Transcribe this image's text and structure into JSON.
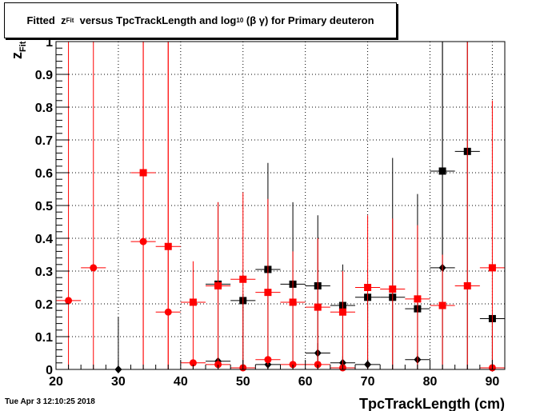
{
  "title": {
    "prefix": "Fitted",
    "z": "z",
    "z_sub": "Fit",
    "middle": "versus TpcTrackLength and log",
    "log_sub": "10",
    "suffix": "(β γ) for Primary deuteron"
  },
  "timestamp": "Tue Apr  3 12:10:25 2018",
  "colors": {
    "black": "#000000",
    "red": "#ff0000"
  },
  "chart_data": {
    "type": "scatter",
    "title": "Fitted z_Fit versus TpcTrackLength and log_10 (β γ) for Primary deuteron",
    "xlabel": "TpcTrackLength (cm)",
    "ylabel": "z_Fit",
    "ylabel_main": "z",
    "ylabel_sub": "Fit",
    "xlim": [
      20,
      92
    ],
    "ylim": [
      0,
      1
    ],
    "x_ticks": [
      20,
      30,
      40,
      50,
      60,
      70,
      80,
      90
    ],
    "y_ticks": [
      0,
      0.1,
      0.2,
      0.3,
      0.4,
      0.5,
      0.6,
      0.7,
      0.8,
      0.9,
      1
    ],
    "y_tick_labels": [
      "0",
      "0.1",
      "0.2",
      "0.3",
      "0.4",
      "0.5",
      "0.6",
      "0.7",
      "0.8",
      "0.9",
      "1"
    ],
    "grid": true,
    "series": [
      {
        "color": "#000000",
        "marker": "diamond",
        "points": [
          {
            "x": 30,
            "y": 0.0,
            "ylo": 0.0,
            "yhi": 0.16
          },
          {
            "x": 46,
            "y": 0.025,
            "ylo": 0.0,
            "yhi": 0.035
          },
          {
            "x": 54,
            "y": 0.015,
            "ylo": 0.0,
            "yhi": 0.025
          },
          {
            "x": 62,
            "y": 0.05,
            "ylo": 0.0,
            "yhi": 0.08
          },
          {
            "x": 66,
            "y": 0.02,
            "ylo": 0.0,
            "yhi": 0.04
          },
          {
            "x": 70,
            "y": 0.015,
            "ylo": 0.0,
            "yhi": 0.03
          },
          {
            "x": 78,
            "y": 0.03,
            "ylo": 0.0,
            "yhi": 0.05
          },
          {
            "x": 82,
            "y": 0.31,
            "ylo": 0.0,
            "yhi": 1.0
          },
          {
            "x": 90,
            "y": 0.005,
            "ylo": 0.0,
            "yhi": 0.015
          }
        ]
      },
      {
        "color": "#000000",
        "marker": "square",
        "points": [
          {
            "x": 46,
            "y": 0.26,
            "ylo": 0.0,
            "yhi": 0.51
          },
          {
            "x": 50,
            "y": 0.21,
            "ylo": 0.0,
            "yhi": 0.23
          },
          {
            "x": 54,
            "y": 0.305,
            "ylo": 0.0,
            "yhi": 0.63
          },
          {
            "x": 58,
            "y": 0.26,
            "ylo": 0.0,
            "yhi": 0.51
          },
          {
            "x": 62,
            "y": 0.255,
            "ylo": 0.0,
            "yhi": 0.47
          },
          {
            "x": 66,
            "y": 0.195,
            "ylo": 0.0,
            "yhi": 0.32
          },
          {
            "x": 70,
            "y": 0.22,
            "ylo": 0.0,
            "yhi": 0.235
          },
          {
            "x": 74,
            "y": 0.22,
            "ylo": 0.0,
            "yhi": 0.645
          },
          {
            "x": 78,
            "y": 0.185,
            "ylo": 0.0,
            "yhi": 0.535
          },
          {
            "x": 82,
            "y": 0.605,
            "ylo": 0.0,
            "yhi": 1.0
          },
          {
            "x": 86,
            "y": 0.665,
            "ylo": 0.0,
            "yhi": 1.0
          },
          {
            "x": 90,
            "y": 0.155,
            "ylo": 0.0,
            "yhi": 0.16
          }
        ]
      },
      {
        "color": "#ff0000",
        "marker": "circle",
        "points": [
          {
            "x": 22,
            "y": 0.21,
            "ylo": 0.0,
            "yhi": 1.0
          },
          {
            "x": 26,
            "y": 0.31,
            "ylo": 0.0,
            "yhi": 1.0
          },
          {
            "x": 34,
            "y": 0.39,
            "ylo": 0.0,
            "yhi": 1.0
          },
          {
            "x": 38,
            "y": 0.175,
            "ylo": 0.0,
            "yhi": 1.0
          },
          {
            "x": 42,
            "y": 0.02,
            "ylo": 0.0,
            "yhi": 0.03
          },
          {
            "x": 46,
            "y": 0.015,
            "ylo": 0.0,
            "yhi": 0.025
          },
          {
            "x": 50,
            "y": 0.005,
            "ylo": 0.0,
            "yhi": 0.01
          },
          {
            "x": 54,
            "y": 0.03,
            "ylo": 0.0,
            "yhi": 0.04
          },
          {
            "x": 58,
            "y": 0.015,
            "ylo": 0.0,
            "yhi": 0.025
          },
          {
            "x": 62,
            "y": 0.015,
            "ylo": 0.0,
            "yhi": 0.025
          },
          {
            "x": 66,
            "y": 0.005,
            "ylo": 0.0,
            "yhi": 0.01
          },
          {
            "x": 90,
            "y": 0.005,
            "ylo": 0.0,
            "yhi": 0.01
          }
        ]
      },
      {
        "color": "#ff0000",
        "marker": "square",
        "points": [
          {
            "x": 34,
            "y": 0.6,
            "ylo": 0.0,
            "yhi": 1.0
          },
          {
            "x": 38,
            "y": 0.375,
            "ylo": 0.0,
            "yhi": 1.0
          },
          {
            "x": 42,
            "y": 0.205,
            "ylo": 0.0,
            "yhi": 0.33
          },
          {
            "x": 46,
            "y": 0.255,
            "ylo": 0.0,
            "yhi": 0.51
          },
          {
            "x": 50,
            "y": 0.275,
            "ylo": 0.0,
            "yhi": 0.54
          },
          {
            "x": 54,
            "y": 0.235,
            "ylo": 0.0,
            "yhi": 0.52
          },
          {
            "x": 58,
            "y": 0.205,
            "ylo": 0.0,
            "yhi": 0.36
          },
          {
            "x": 62,
            "y": 0.19,
            "ylo": 0.0,
            "yhi": 0.4
          },
          {
            "x": 66,
            "y": 0.175,
            "ylo": 0.0,
            "yhi": 0.3
          },
          {
            "x": 70,
            "y": 0.25,
            "ylo": 0.0,
            "yhi": 0.47
          },
          {
            "x": 74,
            "y": 0.245,
            "ylo": 0.0,
            "yhi": 0.46
          },
          {
            "x": 78,
            "y": 0.215,
            "ylo": 0.0,
            "yhi": 0.44
          },
          {
            "x": 82,
            "y": 0.195,
            "ylo": 0.0,
            "yhi": 0.35
          },
          {
            "x": 86,
            "y": 0.255,
            "ylo": 0.0,
            "yhi": 1.0
          },
          {
            "x": 90,
            "y": 0.31,
            "ylo": 0.0,
            "yhi": 0.82
          }
        ]
      }
    ]
  }
}
